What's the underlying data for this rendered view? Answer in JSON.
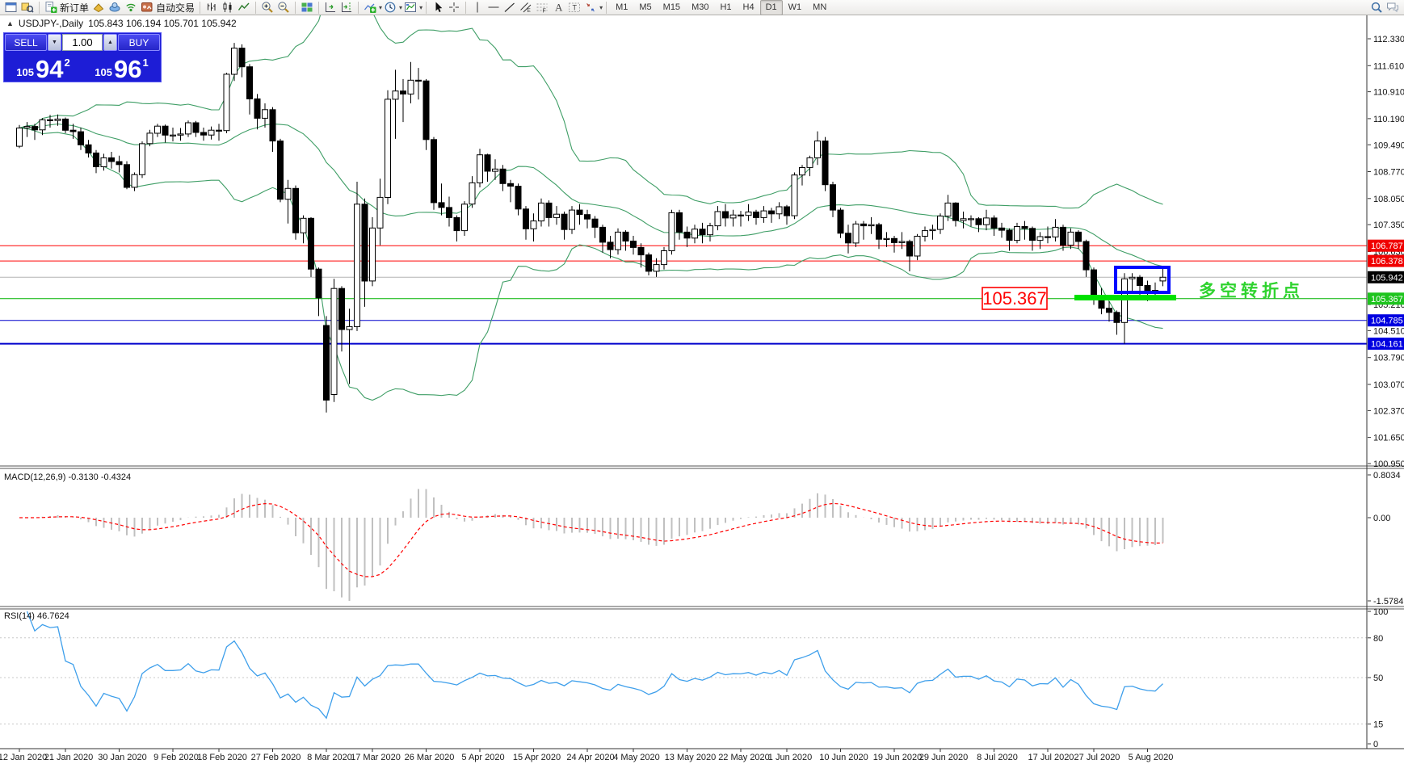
{
  "toolbar": {
    "new_order_label": "新订单",
    "autotrading_label": "自动交易",
    "timeframes": [
      "M1",
      "M5",
      "M15",
      "M30",
      "H1",
      "H4",
      "D1",
      "W1",
      "MN"
    ],
    "active_timeframe": "D1",
    "items": [
      {
        "name": "new-chart-icon",
        "icon": "window"
      },
      {
        "name": "profiles-icon",
        "icon": "profiles"
      },
      {
        "name": "sep"
      },
      {
        "name": "new-order-button",
        "icon": "neworder",
        "label_key": "new_order_label"
      },
      {
        "name": "metaeditor-icon",
        "icon": "gold"
      },
      {
        "name": "vps-icon",
        "icon": "vps"
      },
      {
        "name": "signals-icon",
        "icon": "signal"
      },
      {
        "name": "autotrading-button",
        "icon": "autotrade",
        "label_key": "autotrading_label"
      },
      {
        "name": "sep"
      },
      {
        "name": "bar-chart-icon",
        "icon": "bars"
      },
      {
        "name": "candlestick-chart-icon",
        "icon": "candles"
      },
      {
        "name": "line-chart-icon",
        "icon": "linechart"
      },
      {
        "name": "sep"
      },
      {
        "name": "zoom-in-icon",
        "icon": "zoomin"
      },
      {
        "name": "zoom-out-icon",
        "icon": "zoomout"
      },
      {
        "name": "sep"
      },
      {
        "name": "tile-windows-icon",
        "icon": "tile"
      },
      {
        "name": "sep"
      },
      {
        "name": "auto-scroll-icon",
        "icon": "autoscroll"
      },
      {
        "name": "chart-shift-icon",
        "icon": "shift"
      },
      {
        "name": "sep"
      },
      {
        "name": "indicators-icon",
        "icon": "addind",
        "caret": true
      },
      {
        "name": "periods-icon",
        "icon": "clock",
        "caret": true
      },
      {
        "name": "templates-icon",
        "icon": "template",
        "caret": true
      },
      {
        "name": "sep"
      },
      {
        "name": "cursor-icon",
        "icon": "cursor"
      },
      {
        "name": "crosshair-icon",
        "icon": "cross"
      },
      {
        "name": "sep"
      },
      {
        "name": "vertical-line-icon",
        "icon": "vline"
      },
      {
        "name": "horizontal-line-icon",
        "icon": "hline"
      },
      {
        "name": "trendline-icon",
        "icon": "trend"
      },
      {
        "name": "equidistant-channel-icon",
        "icon": "channel"
      },
      {
        "name": "fibonacci-retracement-icon",
        "icon": "fibo"
      },
      {
        "name": "text-icon",
        "icon": "textA"
      },
      {
        "name": "text-label-icon",
        "icon": "textT"
      },
      {
        "name": "arrows-icon",
        "icon": "arrows",
        "caret": true
      },
      {
        "name": "sep"
      }
    ]
  },
  "symbol_bar": {
    "collapse_glyph": "▲",
    "symbol": "USDJPY-,Daily",
    "ohlc": "105.843 106.194 105.701 105.942"
  },
  "trade_widget": {
    "sell_label": "SELL",
    "buy_label": "BUY",
    "volume": "1.00",
    "sell_price_small": "105",
    "sell_price_big": "94",
    "sell_price_sup": "2",
    "buy_price_small": "105",
    "buy_price_big": "96",
    "buy_price_sup": "1"
  },
  "chart_data": {
    "type": "candlestick",
    "symbol": "USDJPY-",
    "timeframe": "Daily",
    "title": "USDJPY-,Daily",
    "ylim": [
      100.95,
      112.33
    ],
    "y_ticks": [
      112.33,
      111.61,
      110.91,
      110.19,
      109.49,
      108.77,
      108.05,
      107.35,
      106.63,
      105.93,
      105.21,
      104.51,
      103.79,
      103.07,
      102.37,
      101.65,
      100.95
    ],
    "ohlc": [
      [
        109.45,
        110.02,
        109.4,
        109.94
      ],
      [
        109.94,
        110.1,
        109.7,
        109.98
      ],
      [
        109.98,
        110.05,
        109.62,
        109.89
      ],
      [
        109.89,
        110.2,
        109.75,
        110.16
      ],
      [
        110.16,
        110.29,
        109.95,
        110.14
      ],
      [
        110.14,
        110.3,
        110.0,
        110.18
      ],
      [
        110.18,
        110.22,
        109.8,
        109.88
      ],
      [
        109.88,
        110.05,
        109.65,
        109.84
      ],
      [
        109.84,
        109.95,
        109.35,
        109.49
      ],
      [
        109.49,
        109.62,
        109.15,
        109.27
      ],
      [
        109.27,
        109.35,
        108.73,
        108.9
      ],
      [
        108.9,
        109.25,
        108.8,
        109.14
      ],
      [
        109.14,
        109.3,
        108.85,
        109.04
      ],
      [
        109.04,
        109.2,
        108.75,
        108.96
      ],
      [
        108.96,
        109.05,
        108.3,
        108.35
      ],
      [
        108.35,
        108.75,
        108.25,
        108.69
      ],
      [
        108.69,
        109.58,
        108.6,
        109.52
      ],
      [
        109.52,
        109.89,
        109.45,
        109.8
      ],
      [
        109.8,
        110.05,
        109.7,
        109.99
      ],
      [
        109.99,
        110.03,
        109.55,
        109.75
      ],
      [
        109.75,
        109.95,
        109.58,
        109.75
      ],
      [
        109.75,
        109.94,
        109.6,
        109.78
      ],
      [
        109.78,
        110.14,
        109.7,
        110.08
      ],
      [
        110.08,
        110.13,
        109.7,
        109.82
      ],
      [
        109.82,
        109.95,
        109.6,
        109.75
      ],
      [
        109.75,
        109.98,
        109.63,
        109.88
      ],
      [
        109.88,
        110.05,
        109.6,
        109.87
      ],
      [
        109.87,
        111.42,
        109.8,
        111.38
      ],
      [
        111.38,
        112.22,
        111.2,
        112.08
      ],
      [
        112.08,
        112.18,
        111.3,
        111.58
      ],
      [
        111.58,
        111.65,
        110.3,
        110.72
      ],
      [
        110.72,
        110.85,
        109.9,
        110.2
      ],
      [
        110.2,
        110.6,
        109.95,
        110.43
      ],
      [
        110.43,
        110.5,
        109.3,
        109.59
      ],
      [
        109.59,
        109.65,
        107.95,
        108.03
      ],
      [
        108.03,
        108.55,
        107.38,
        108.32
      ],
      [
        108.32,
        108.4,
        106.95,
        107.13
      ],
      [
        107.13,
        107.6,
        106.85,
        107.52
      ],
      [
        107.52,
        107.55,
        105.95,
        106.16
      ],
      [
        106.16,
        106.2,
        104.9,
        105.39
      ],
      [
        104.65,
        104.9,
        102.32,
        102.65
      ],
      [
        102.8,
        105.9,
        102.6,
        105.64
      ],
      [
        105.64,
        105.7,
        103.95,
        104.54
      ],
      [
        104.54,
        105.1,
        103.08,
        104.62
      ],
      [
        104.62,
        108.5,
        104.5,
        107.9
      ],
      [
        107.9,
        108.05,
        105.15,
        105.84
      ],
      [
        105.84,
        107.55,
        105.7,
        107.26
      ],
      [
        107.26,
        108.58,
        106.8,
        108.08
      ],
      [
        108.08,
        110.95,
        107.9,
        110.71
      ],
      [
        110.71,
        111.5,
        109.65,
        110.93
      ],
      [
        110.93,
        111.25,
        110.1,
        110.85
      ],
      [
        110.85,
        111.71,
        110.6,
        111.22
      ],
      [
        111.22,
        111.55,
        110.7,
        111.2
      ],
      [
        111.2,
        111.25,
        109.35,
        109.63
      ],
      [
        109.63,
        109.7,
        107.75,
        107.94
      ],
      [
        107.94,
        108.45,
        107.6,
        107.81
      ],
      [
        107.81,
        108.1,
        107.3,
        107.54
      ],
      [
        107.54,
        107.6,
        106.9,
        107.19
      ],
      [
        107.19,
        107.98,
        107.05,
        107.9
      ],
      [
        107.9,
        108.65,
        107.8,
        108.47
      ],
      [
        108.47,
        109.38,
        108.35,
        109.22
      ],
      [
        109.22,
        109.25,
        108.5,
        108.78
      ],
      [
        108.78,
        109.1,
        108.55,
        108.84
      ],
      [
        108.84,
        108.95,
        108.25,
        108.45
      ],
      [
        108.45,
        108.55,
        107.95,
        108.38
      ],
      [
        108.38,
        108.45,
        107.6,
        107.77
      ],
      [
        107.77,
        107.85,
        106.95,
        107.24
      ],
      [
        107.24,
        107.65,
        106.9,
        107.45
      ],
      [
        107.45,
        108.05,
        107.3,
        107.93
      ],
      [
        107.93,
        108.0,
        107.3,
        107.54
      ],
      [
        107.54,
        107.85,
        107.35,
        107.63
      ],
      [
        107.63,
        107.7,
        106.95,
        107.22
      ],
      [
        107.22,
        107.85,
        107.1,
        107.74
      ],
      [
        107.74,
        107.9,
        107.35,
        107.62
      ],
      [
        107.62,
        107.75,
        107.25,
        107.5
      ],
      [
        107.5,
        107.58,
        106.99,
        107.28
      ],
      [
        107.28,
        107.35,
        106.6,
        106.88
      ],
      [
        106.88,
        107.05,
        106.45,
        106.68
      ],
      [
        106.68,
        107.25,
        106.55,
        107.15
      ],
      [
        107.15,
        107.2,
        106.65,
        106.91
      ],
      [
        106.91,
        107.05,
        106.55,
        106.74
      ],
      [
        106.74,
        106.85,
        106.2,
        106.54
      ],
      [
        106.54,
        106.6,
        105.99,
        106.1
      ],
      [
        106.1,
        106.45,
        105.95,
        106.28
      ],
      [
        106.28,
        106.75,
        106.15,
        106.65
      ],
      [
        106.65,
        107.75,
        106.55,
        107.67
      ],
      [
        107.67,
        107.75,
        106.95,
        107.15
      ],
      [
        107.15,
        107.3,
        106.75,
        106.99
      ],
      [
        106.99,
        107.35,
        106.85,
        107.23
      ],
      [
        107.23,
        107.4,
        106.85,
        107.08
      ],
      [
        107.08,
        107.4,
        106.9,
        107.32
      ],
      [
        107.32,
        107.85,
        107.2,
        107.7
      ],
      [
        107.7,
        107.9,
        107.3,
        107.53
      ],
      [
        107.53,
        107.75,
        107.3,
        107.61
      ],
      [
        107.61,
        107.72,
        107.3,
        107.6
      ],
      [
        107.6,
        107.9,
        107.45,
        107.69
      ],
      [
        107.69,
        107.75,
        107.35,
        107.54
      ],
      [
        107.54,
        107.85,
        107.4,
        107.72
      ],
      [
        107.72,
        107.8,
        107.4,
        107.64
      ],
      [
        107.64,
        107.95,
        107.5,
        107.83
      ],
      [
        107.83,
        107.88,
        107.35,
        107.59
      ],
      [
        107.59,
        108.75,
        107.5,
        108.68
      ],
      [
        108.68,
        108.95,
        108.4,
        108.88
      ],
      [
        108.88,
        109.2,
        108.65,
        109.14
      ],
      [
        109.14,
        109.85,
        108.95,
        109.59
      ],
      [
        109.59,
        109.7,
        108.25,
        108.42
      ],
      [
        108.42,
        108.5,
        107.55,
        107.74
      ],
      [
        107.74,
        107.8,
        106.99,
        107.12
      ],
      [
        107.12,
        107.35,
        106.58,
        106.86
      ],
      [
        106.86,
        107.45,
        106.75,
        107.37
      ],
      [
        107.37,
        107.45,
        106.95,
        107.32
      ],
      [
        107.32,
        107.55,
        107.1,
        107.35
      ],
      [
        107.35,
        107.4,
        106.7,
        106.96
      ],
      [
        106.96,
        107.15,
        106.75,
        106.98
      ],
      [
        106.98,
        107.05,
        106.6,
        106.87
      ],
      [
        106.87,
        107.15,
        106.7,
        106.9
      ],
      [
        106.9,
        106.95,
        106.1,
        106.51
      ],
      [
        106.51,
        107.1,
        106.4,
        107.04
      ],
      [
        107.04,
        107.3,
        106.9,
        107.19
      ],
      [
        107.19,
        107.35,
        106.95,
        107.22
      ],
      [
        107.22,
        107.65,
        107.1,
        107.58
      ],
      [
        107.58,
        108.15,
        107.45,
        107.93
      ],
      [
        107.93,
        107.95,
        107.3,
        107.46
      ],
      [
        107.46,
        107.7,
        107.25,
        107.51
      ],
      [
        107.51,
        107.6,
        107.3,
        107.51
      ],
      [
        107.51,
        107.55,
        107.15,
        107.35
      ],
      [
        107.35,
        107.75,
        107.2,
        107.53
      ],
      [
        107.53,
        107.6,
        107.05,
        107.26
      ],
      [
        107.26,
        107.4,
        107.0,
        107.2
      ],
      [
        107.2,
        107.25,
        106.65,
        106.93
      ],
      [
        106.93,
        107.4,
        106.85,
        107.3
      ],
      [
        107.3,
        107.45,
        106.95,
        107.25
      ],
      [
        107.25,
        107.3,
        106.65,
        106.93
      ],
      [
        106.93,
        107.15,
        106.7,
        107.03
      ],
      [
        107.03,
        107.3,
        106.85,
        107.02
      ],
      [
        107.02,
        107.5,
        106.9,
        107.28
      ],
      [
        107.28,
        107.35,
        106.65,
        106.8
      ],
      [
        106.8,
        107.25,
        106.7,
        107.15
      ],
      [
        107.15,
        107.2,
        106.7,
        106.9
      ],
      [
        106.9,
        106.95,
        105.95,
        106.14
      ],
      [
        106.14,
        106.2,
        105.2,
        105.38
      ],
      [
        105.38,
        105.65,
        104.95,
        105.11
      ],
      [
        105.11,
        105.3,
        104.75,
        105.0
      ],
      [
        105.0,
        105.05,
        104.4,
        104.73
      ],
      [
        104.73,
        106.05,
        104.16,
        105.9
      ],
      [
        105.9,
        106.05,
        105.55,
        105.94
      ],
      [
        105.94,
        106.0,
        105.45,
        105.72
      ],
      [
        105.72,
        105.85,
        105.3,
        105.59
      ],
      [
        105.59,
        105.8,
        105.35,
        105.55
      ],
      [
        105.84,
        106.19,
        105.7,
        105.94
      ]
    ],
    "date_labels": [
      [
        "12 Jan 2020",
        0
      ],
      [
        "21 Jan 2020",
        6
      ],
      [
        "30 Jan 2020",
        13
      ],
      [
        "9 Feb 2020",
        20
      ],
      [
        "18 Feb 2020",
        26
      ],
      [
        "27 Feb 2020",
        33
      ],
      [
        "8 Mar 2020",
        40
      ],
      [
        "17 Mar 2020",
        46
      ],
      [
        "26 Mar 2020",
        53
      ],
      [
        "5 Apr 2020",
        60
      ],
      [
        "15 Apr 2020",
        67
      ],
      [
        "24 Apr 2020",
        74
      ],
      [
        "4 May 2020",
        80
      ],
      [
        "13 May 2020",
        87
      ],
      [
        "22 May 2020",
        94
      ],
      [
        "1 Jun 2020",
        100
      ],
      [
        "10 Jun 2020",
        107
      ],
      [
        "19 Jun 2020",
        114
      ],
      [
        "29 Jun 2020",
        120
      ],
      [
        "8 Jul 2020",
        127
      ],
      [
        "17 Jul 2020",
        134
      ],
      [
        "27 Jul 2020",
        140
      ],
      [
        "5 Aug 2020",
        147
      ]
    ],
    "hlines": [
      {
        "price": 106.787,
        "color": "#ff0000",
        "badge": "#f00000",
        "width": 1
      },
      {
        "price": 106.378,
        "color": "#ff0000",
        "badge": "#f00000",
        "width": 1
      },
      {
        "price": 105.942,
        "color": "#b4b4b4",
        "badge": "#000000",
        "width": 1
      },
      {
        "price": 105.367,
        "color": "#00b400",
        "badge": "#1ec41e",
        "width": 1
      },
      {
        "price": 104.785,
        "color": "#0000cc",
        "badge": "#0000e0",
        "width": 1
      },
      {
        "price": 104.161,
        "color": "#0000cc",
        "badge": "#0000e0",
        "width": 2
      }
    ],
    "indicators": {
      "bollinger": {
        "period": 20,
        "deviation": 2,
        "color": "#3f9e66"
      },
      "macd": {
        "label": "MACD(12,26,9) -0.3130 -0.4324",
        "macd_value": -0.313,
        "signal_value": -0.4324,
        "scale_max": "0.8034",
        "scale_zero": "0.00",
        "scale_min": "-1.5784",
        "histogram_color": "#c0c0c0",
        "signal_color": "#ff0000"
      },
      "rsi": {
        "label": "RSI(14) 46.7624",
        "value": 46.7624,
        "levels": [
          80,
          50,
          15
        ],
        "scale_ticks": [
          100,
          80,
          50,
          15,
          0
        ],
        "line_color": "#3e9feb"
      }
    },
    "annotations": {
      "price_box_label": "105.367",
      "cn_text": "多空转折点",
      "cn_text_color": "#2fd32f",
      "highlight_bar_color": "#00e100",
      "rect_color": "#0008ff"
    }
  }
}
